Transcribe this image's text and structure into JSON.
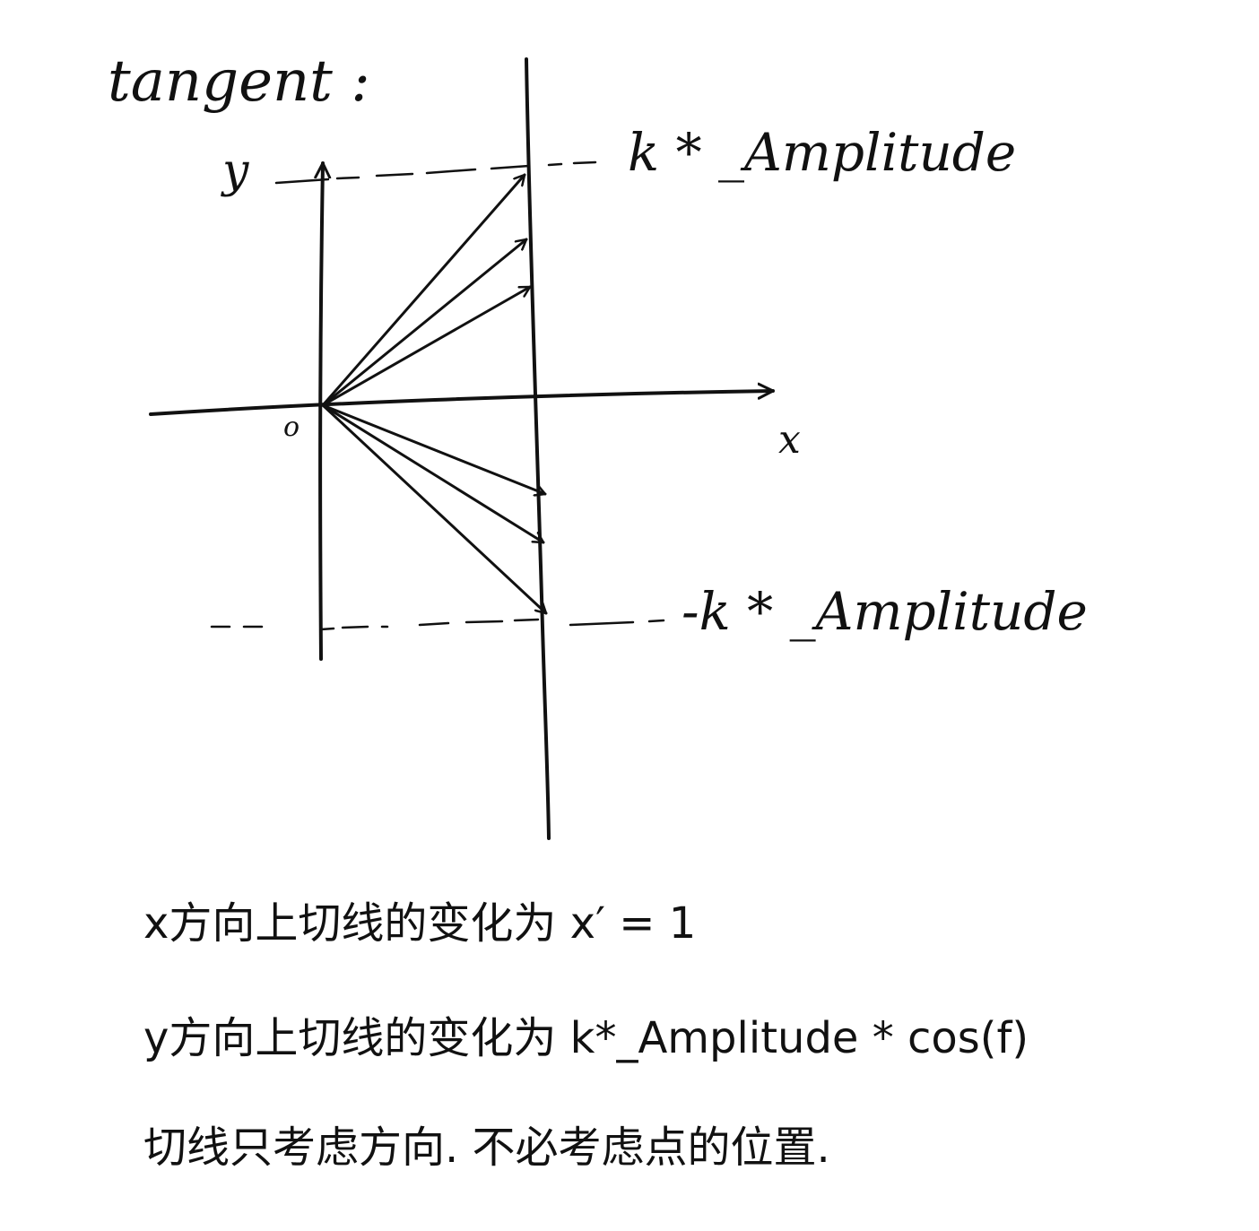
{
  "title": "tangent :",
  "axes": {
    "y_label": "y",
    "x_label": "x",
    "origin_label": "o"
  },
  "levels": {
    "top": "k * _Amplitude",
    "bottom": "-k * _Amplitude"
  },
  "notes": [
    "x方向上切线的变化为  x′ = 1",
    "y方向上切线的变化为 k*_Amplitude * cos(f)",
    "切线只考虑方向. 不必考虑点的位置."
  ],
  "colors": {
    "ink": "#111111",
    "paper": "#ffffff"
  }
}
